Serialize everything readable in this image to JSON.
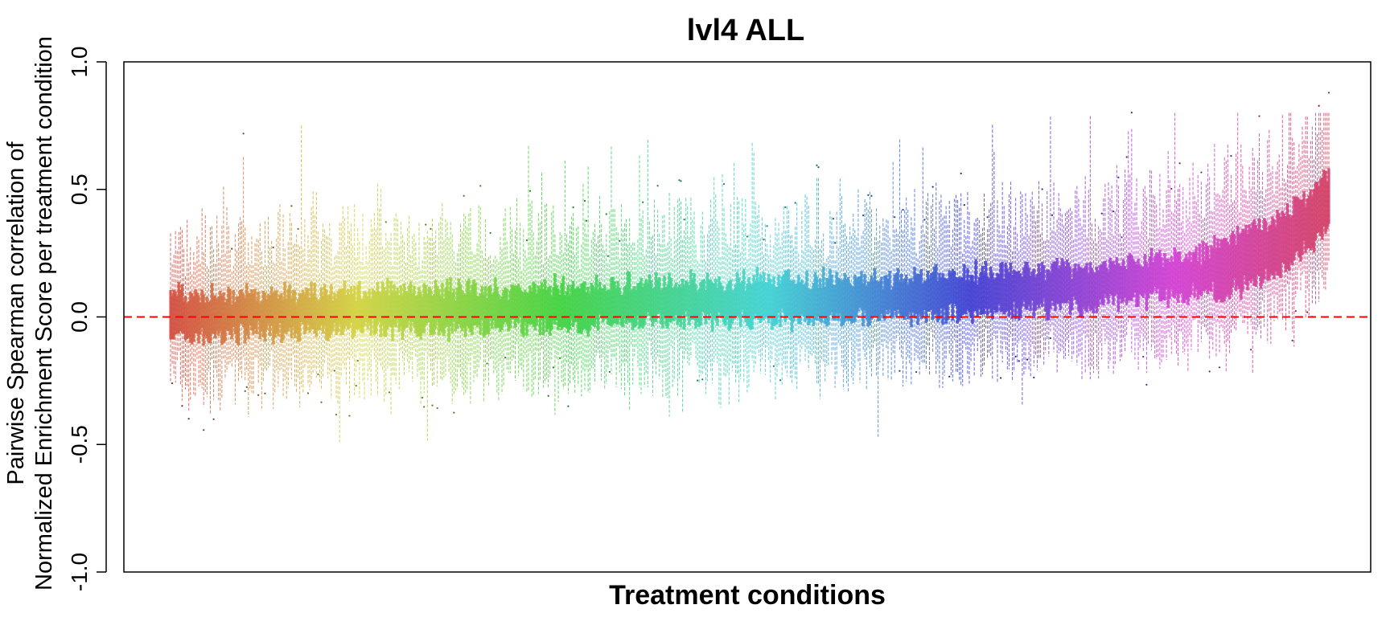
{
  "chart_data": {
    "type": "box",
    "title": "lvl4 ALL",
    "xlabel": "Treatment conditions",
    "ylabel_line1": "Pairwise Spearman correlation of",
    "ylabel_line2": "Normalized Enrichment Score per treatment condition",
    "ylim": [
      -1.0,
      1.0
    ],
    "yticks": [
      {
        "value": 1.0,
        "label": "1.0"
      },
      {
        "value": 0.5,
        "label": "0.5"
      },
      {
        "value": 0.0,
        "label": "0.0"
      },
      {
        "value": -0.5,
        "label": "-0.5"
      },
      {
        "value": -1.0,
        "label": "-1.0"
      }
    ],
    "reference_line": {
      "y": 0.0,
      "color": "#ff0000",
      "style": "dashed"
    },
    "n_conditions": 700,
    "grid": false,
    "legend": "none",
    "color_scheme": "rainbow hue gradient (red → orange → olive → green → teal → blue → violet → pink)",
    "median_trend": [
      {
        "x": 0.0,
        "y": 0.0
      },
      {
        "x": 0.1,
        "y": 0.01
      },
      {
        "x": 0.2,
        "y": 0.02
      },
      {
        "x": 0.3,
        "y": 0.03
      },
      {
        "x": 0.4,
        "y": 0.05
      },
      {
        "x": 0.5,
        "y": 0.06
      },
      {
        "x": 0.6,
        "y": 0.07
      },
      {
        "x": 0.7,
        "y": 0.09
      },
      {
        "x": 0.8,
        "y": 0.12
      },
      {
        "x": 0.9,
        "y": 0.17
      },
      {
        "x": 0.96,
        "y": 0.28
      },
      {
        "x": 1.0,
        "y": 0.45
      }
    ],
    "typical_q1_offset": -0.07,
    "typical_q3_offset": 0.08,
    "typical_whisker_low": -0.3,
    "typical_whisker_high": 0.35,
    "max_whisker_high": 0.8,
    "min_whisker_low": -0.55
  }
}
